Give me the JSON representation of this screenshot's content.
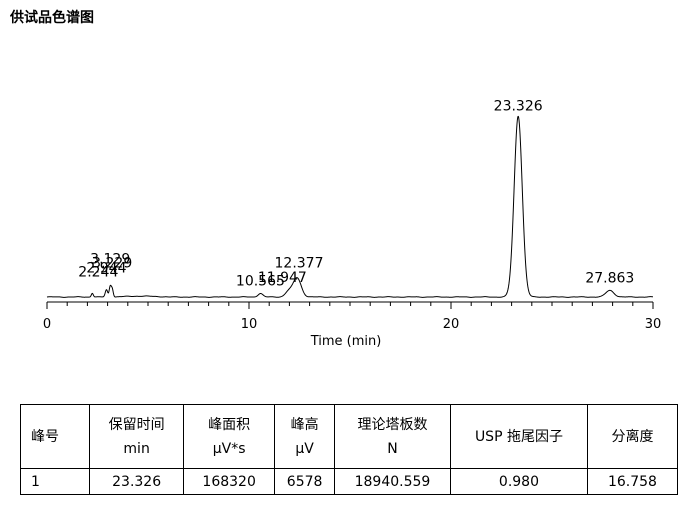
{
  "title": "供试品色谱图",
  "chart_data": {
    "type": "line",
    "xlabel": "Time (min)",
    "xlim": [
      0,
      30
    ],
    "xticks": [
      0,
      10,
      20,
      30
    ],
    "ylim": [
      0,
      6900
    ],
    "baseline": 120,
    "peaks": [
      {
        "rt": 2.244,
        "height": 140,
        "width": 0.05,
        "label": "2.244"
      },
      {
        "rt": 2.944,
        "height": 260,
        "width": 0.06,
        "label": "2.944"
      },
      {
        "rt": 3.129,
        "height": 380,
        "width": 0.05,
        "label": "3.129"
      },
      {
        "rt": 3.229,
        "height": 300,
        "width": 0.05,
        "label": "3.229"
      },
      {
        "rt": 10.565,
        "height": 130,
        "width": 0.12,
        "label": "10.565"
      },
      {
        "rt": 11.947,
        "height": 190,
        "width": 0.16,
        "label": "11.947"
      },
      {
        "rt": 12.377,
        "height": 700,
        "width": 0.2,
        "label": "12.377"
      },
      {
        "rt": 23.326,
        "height": 6578,
        "width": 0.2,
        "label": "23.326"
      },
      {
        "rt": 27.863,
        "height": 240,
        "width": 0.2,
        "label": "27.863"
      }
    ]
  },
  "table": {
    "headers": [
      [
        "峰号"
      ],
      [
        "保留时间",
        "min"
      ],
      [
        "峰面积",
        "μV*s"
      ],
      [
        "峰高",
        "μV"
      ],
      [
        "理论塔板数",
        "N"
      ],
      [
        "USP 拖尾因子"
      ],
      [
        "分离度"
      ]
    ],
    "rows": [
      [
        "1",
        "23.326",
        "168320",
        "6578",
        "18940.559",
        "0.980",
        "16.758"
      ]
    ]
  }
}
